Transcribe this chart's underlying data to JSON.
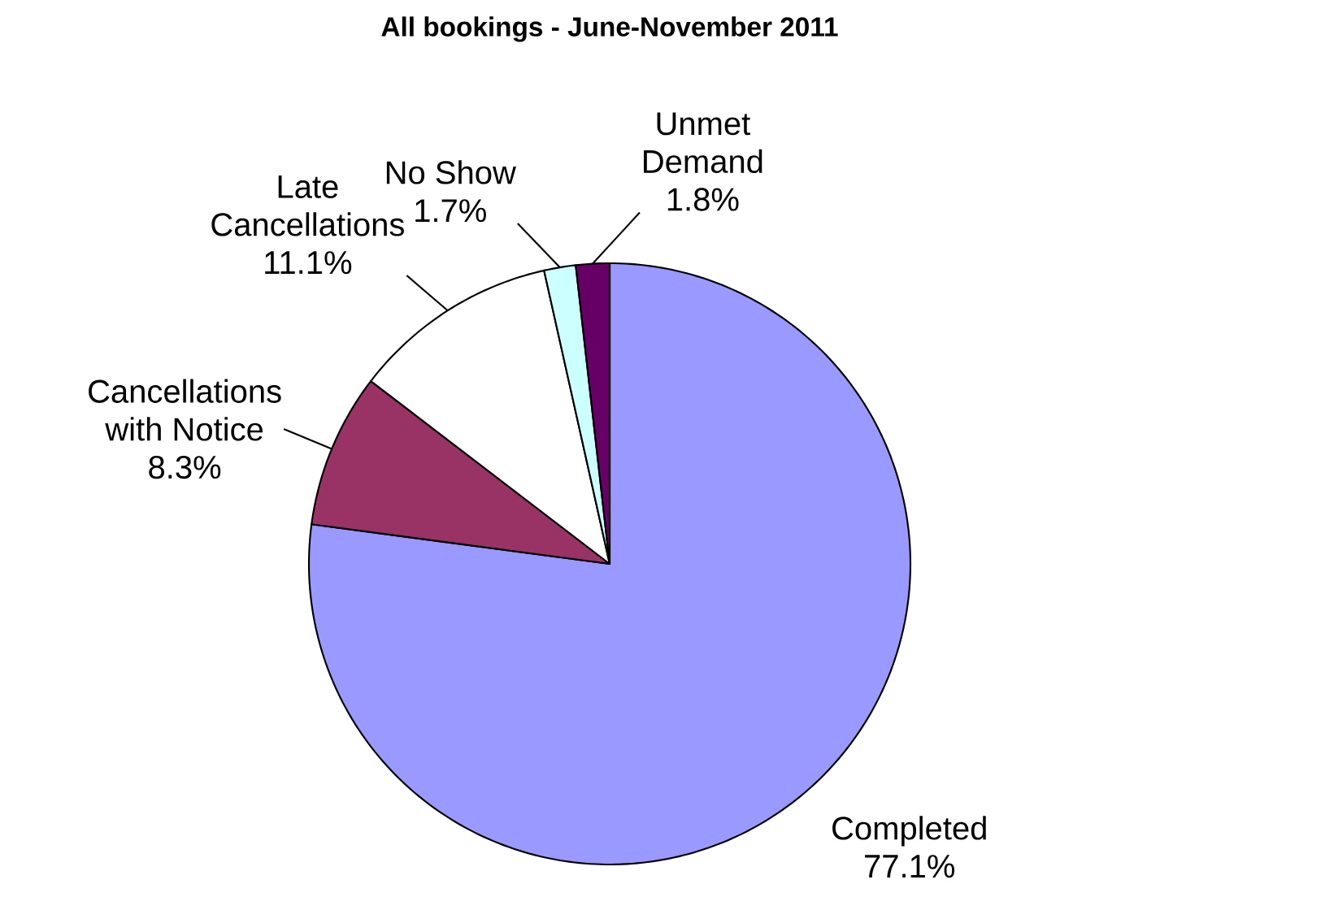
{
  "chart_data": {
    "type": "pie",
    "title": "All bookings - June-November 2011",
    "categories": [
      "Completed",
      "Cancellations with Notice",
      "Late Cancellations",
      "No Show",
      "Unmet Demand"
    ],
    "values": [
      77.1,
      8.3,
      11.1,
      1.7,
      1.8
    ],
    "colors": [
      "#9999ff",
      "#993366",
      "#ffffff",
      "#ccffff",
      "#660066"
    ],
    "value_labels": [
      "77.1%",
      "8.3%",
      "11.1%",
      "1.7%",
      "1.8%"
    ]
  }
}
